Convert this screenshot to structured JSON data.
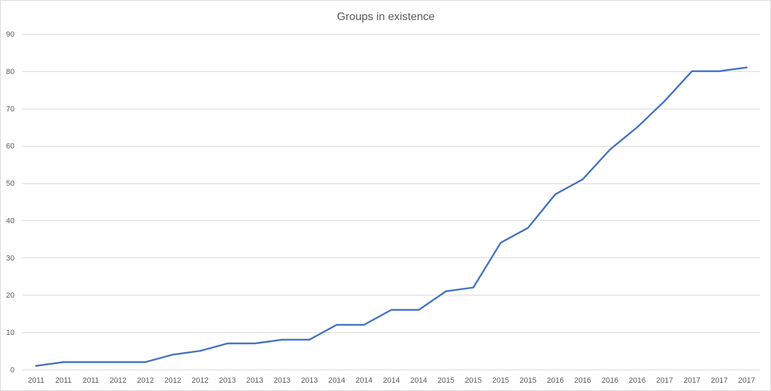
{
  "chart_data": {
    "type": "line",
    "title": "Groups in existence",
    "xlabel": "",
    "ylabel": "",
    "categories": [
      "2011",
      "2011",
      "2011",
      "2012",
      "2012",
      "2012",
      "2012",
      "2013",
      "2013",
      "2013",
      "2013",
      "2014",
      "2014",
      "2014",
      "2014",
      "2015",
      "2015",
      "2015",
      "2015",
      "2016",
      "2016",
      "2016",
      "2016",
      "2017",
      "2017",
      "2017",
      "2017"
    ],
    "values": [
      1,
      2,
      2,
      2,
      2,
      4,
      5,
      7,
      7,
      8,
      8,
      12,
      12,
      16,
      16,
      21,
      22,
      34,
      38,
      47,
      51,
      59,
      65,
      72,
      80,
      80,
      81
    ],
    "ylim": [
      0,
      90
    ],
    "yticks": [
      0,
      10,
      20,
      30,
      40,
      50,
      60,
      70,
      80,
      90
    ],
    "grid": "horizontal",
    "legend": "none",
    "markers": false
  },
  "colors": {
    "series_line": "#4472C4",
    "gridline": "#D9D9D9",
    "text": "#595959",
    "background": "#FFFFFF"
  }
}
